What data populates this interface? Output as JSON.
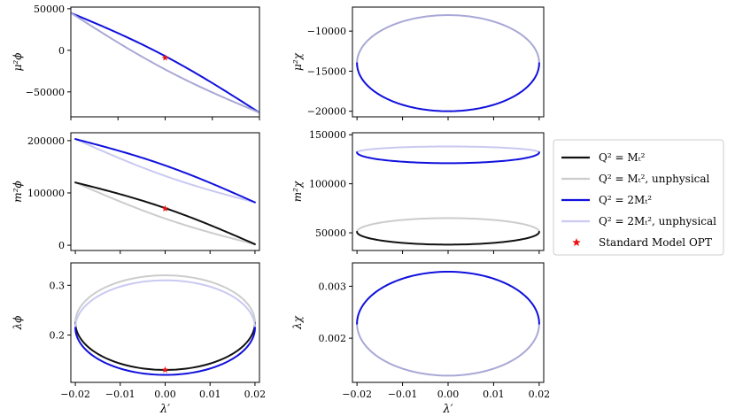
{
  "figure": {
    "x_label": "λ′",
    "colors": {
      "mt2": "#111111",
      "mt2_unphysical": "#cccccc",
      "twomt2": "#1010dd",
      "twomt2_unphysical": "#c9c9f2",
      "overlap_light": "#a8a8d6",
      "marker": "#ee1111"
    }
  },
  "legend": {
    "entries": [
      {
        "label": "Q² = Mₜ²",
        "style": "mt2"
      },
      {
        "label": "Q² = Mₜ², unphysical",
        "style": "mt2_unphysical"
      },
      {
        "label": "Q² = 2Mₜ²",
        "style": "twomt2"
      },
      {
        "label": "Q² = 2Mₜ², unphysical",
        "style": "twomt2_unphysical"
      },
      {
        "label": "Standard Model OPT",
        "style": "marker"
      }
    ]
  },
  "chart_data": [
    {
      "id": "mu_phi",
      "type": "line",
      "ylabel": "μ²ϕ",
      "xlim": [
        -0.02,
        0.02
      ],
      "ylim": [
        -80000,
        52000
      ],
      "x_ticks": [],
      "x_tick_labels": [],
      "y_ticks": [
        50000,
        0,
        -50000
      ],
      "y_tick_labels": [
        "50000",
        "0",
        "−50000"
      ],
      "series": [
        {
          "name": "Q² = 2Mₜ²",
          "style": "twomt2",
          "kind": "lens",
          "x0": -0.02,
          "x1": 0.02,
          "y0": 45000,
          "y1": -75000,
          "bulge": 8000,
          "dash": "upper"
        },
        {
          "name": "Q² = 2Mₜ², unphysical",
          "style": "overlap_light",
          "kind": "lens",
          "x0": -0.02,
          "x1": 0.02,
          "y0": 45000,
          "y1": -75000,
          "bulge": 8000,
          "dash": "lower"
        }
      ],
      "markers": [
        {
          "x": 0.0,
          "y": -9000
        }
      ]
    },
    {
      "id": "mu_chi",
      "type": "line",
      "ylabel": "μ²χ",
      "xlim": [
        -0.021,
        0.021
      ],
      "ylim": [
        -20700,
        -7000
      ],
      "x_ticks": [],
      "x_tick_labels": [],
      "y_ticks": [
        -10000,
        -15000,
        -20000
      ],
      "y_tick_labels": [
        "−10000",
        "−15000",
        "−20000"
      ],
      "series": [
        {
          "name": "Q² = 2Mₜ², unphysical",
          "style": "overlap_light",
          "kind": "ellipse",
          "cx": 0.0,
          "rx": 0.02,
          "cy": -14000,
          "ry_top": 6000,
          "ry_bot": 6000,
          "dash": "upper"
        },
        {
          "name": "Q² = 2Mₜ²",
          "style": "twomt2",
          "kind": "ellipse",
          "cx": 0.0,
          "rx": 0.02,
          "cy": -14000,
          "ry_top": 6000,
          "ry_bot": 6000,
          "dash": "lower"
        }
      ],
      "markers": []
    },
    {
      "id": "m_phi",
      "type": "line",
      "ylabel": "m²ϕ",
      "xlim": [
        -0.021,
        0.021
      ],
      "ylim": [
        -10000,
        215000
      ],
      "x_ticks": [],
      "x_tick_labels": [],
      "y_ticks": [
        200000,
        100000,
        0
      ],
      "y_tick_labels": [
        "200000",
        "100000",
        "0"
      ],
      "series": [
        {
          "name": "Q² = 2Mₜ², unphysical",
          "style": "twomt2_unphysical",
          "kind": "lens",
          "x0": -0.02,
          "x1": 0.02,
          "y0": 203000,
          "y1": 82000,
          "bulge": 10000,
          "dash": "lower"
        },
        {
          "name": "Q² = 2Mₜ²",
          "style": "twomt2",
          "kind": "lens",
          "x0": -0.02,
          "x1": 0.02,
          "y0": 203000,
          "y1": 82000,
          "bulge": 10000,
          "dash": "upper"
        },
        {
          "name": "Q² = Mₜ², unphysical",
          "style": "mt2_unphysical",
          "kind": "lens",
          "x0": -0.02,
          "x1": 0.02,
          "y0": 120000,
          "y1": 2000,
          "bulge": 10000,
          "dash": "lower"
        },
        {
          "name": "Q² = Mₜ²",
          "style": "mt2",
          "kind": "lens",
          "x0": -0.02,
          "x1": 0.02,
          "y0": 120000,
          "y1": 2000,
          "bulge": 10000,
          "dash": "upper"
        }
      ],
      "markers": [
        {
          "x": 0.0,
          "y": 70000
        }
      ]
    },
    {
      "id": "m_chi",
      "type": "line",
      "ylabel": "m²χ",
      "xlim": [
        -0.021,
        0.021
      ],
      "ylim": [
        32000,
        152000
      ],
      "x_ticks": [],
      "x_tick_labels": [],
      "y_ticks": [
        150000,
        100000,
        50000
      ],
      "y_tick_labels": [
        "150000",
        "100000",
        "50000"
      ],
      "series": [
        {
          "name": "Q² = 2Mₜ², unphysical",
          "style": "twomt2_unphysical",
          "kind": "ellipse",
          "cx": 0.0,
          "rx": 0.02,
          "cy": 132000,
          "ry_top": 6000,
          "ry_bot": 11000,
          "dash": "upper"
        },
        {
          "name": "Q² = 2Mₜ²",
          "style": "twomt2",
          "kind": "ellipse",
          "cx": 0.0,
          "rx": 0.02,
          "cy": 132000,
          "ry_top": 6000,
          "ry_bot": 11000,
          "dash": "lower"
        },
        {
          "name": "Q² = Mₜ², unphysical",
          "style": "mt2_unphysical",
          "kind": "ellipse",
          "cx": 0.0,
          "rx": 0.02,
          "cy": 51000,
          "ry_top": 14000,
          "ry_bot": 13000,
          "dash": "upper"
        },
        {
          "name": "Q² = Mₜ²",
          "style": "mt2",
          "kind": "ellipse",
          "cx": 0.0,
          "rx": 0.02,
          "cy": 51000,
          "ry_top": 14000,
          "ry_bot": 13000,
          "dash": "lower"
        }
      ],
      "markers": []
    },
    {
      "id": "lambda_phi",
      "type": "line",
      "ylabel": "λϕ",
      "xlim": [
        -0.021,
        0.021
      ],
      "ylim": [
        0.105,
        0.345
      ],
      "x_ticks": [
        -0.02,
        -0.01,
        0.0,
        0.01,
        0.02
      ],
      "x_tick_labels": [
        "−0.02",
        "−0.01",
        "0.00",
        "0.01",
        "0.02"
      ],
      "y_ticks": [
        0.3,
        0.2
      ],
      "y_tick_labels": [
        "0.3",
        "0.2"
      ],
      "series": [
        {
          "name": "Q² = Mₜ², unphysical",
          "style": "mt2_unphysical",
          "kind": "ellipse",
          "cx": 0.0,
          "rx": 0.02,
          "cy": 0.225,
          "ry_top": 0.095,
          "ry_bot": 0.095,
          "dash": "upper"
        },
        {
          "name": "Q² = Mₜ²",
          "style": "mt2",
          "kind": "ellipse",
          "cx": 0.0,
          "rx": 0.02,
          "cy": 0.225,
          "ry_top": 0.095,
          "ry_bot": 0.095,
          "dash": "lower"
        },
        {
          "name": "Q² = 2Mₜ², unphysical",
          "style": "twomt2_unphysical",
          "kind": "ellipse",
          "cx": 0.0,
          "rx": 0.02,
          "cy": 0.215,
          "ry_top": 0.095,
          "ry_bot": 0.095,
          "dash": "upper"
        },
        {
          "name": "Q² = 2Mₜ²",
          "style": "twomt2",
          "kind": "ellipse",
          "cx": 0.0,
          "rx": 0.02,
          "cy": 0.215,
          "ry_top": 0.095,
          "ry_bot": 0.095,
          "dash": "lower"
        }
      ],
      "markers": [
        {
          "x": 0.0,
          "y": 0.13
        }
      ]
    },
    {
      "id": "lambda_chi",
      "type": "line",
      "ylabel": "λχ",
      "xlim": [
        -0.021,
        0.021
      ],
      "ylim": [
        0.00115,
        0.00345
      ],
      "x_ticks": [
        -0.02,
        -0.01,
        0.0,
        0.01,
        0.02
      ],
      "x_tick_labels": [
        "−0.02",
        "−0.01",
        "0.00",
        "0.01",
        "0.02"
      ],
      "y_ticks": [
        0.003,
        0.002
      ],
      "y_tick_labels": [
        "0.003",
        "0.002"
      ],
      "series": [
        {
          "name": "Q² = 2Mₜ², unphysical",
          "style": "overlap_light",
          "kind": "ellipse",
          "cx": 0.0,
          "rx": 0.02,
          "cy": 0.00228,
          "ry_top": 0.001,
          "ry_bot": 0.001,
          "dash": "lower"
        },
        {
          "name": "Q² = 2Mₜ²",
          "style": "twomt2",
          "kind": "ellipse",
          "cx": 0.0,
          "rx": 0.02,
          "cy": 0.00228,
          "ry_top": 0.001,
          "ry_bot": 0.001,
          "dash": "upper"
        }
      ],
      "markers": []
    }
  ]
}
